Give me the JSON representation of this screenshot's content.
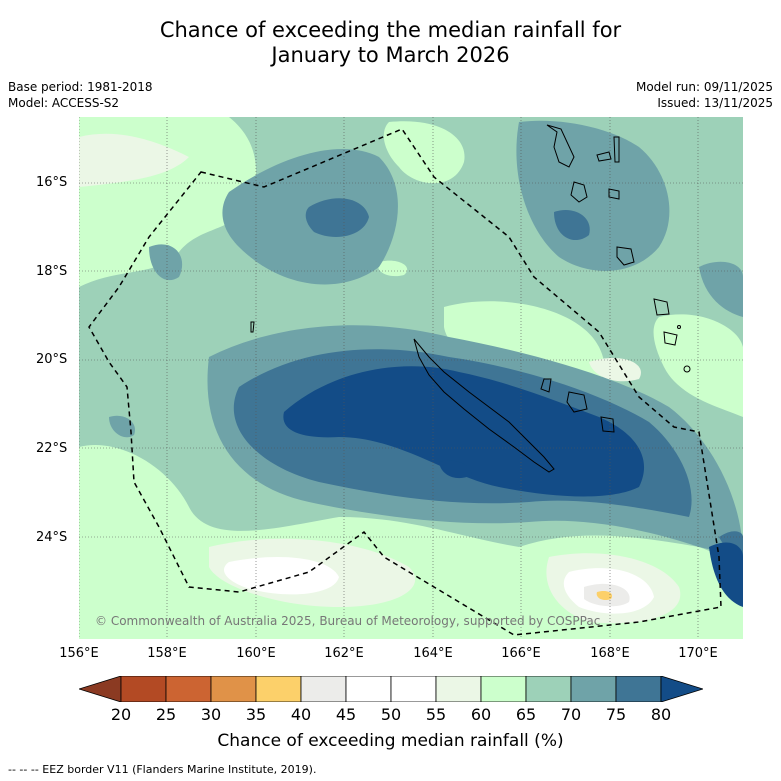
{
  "title_line1": "Chance of exceeding the median rainfall for",
  "title_line2": "January to March 2026",
  "meta": {
    "base_period": "Base period: 1981-2018",
    "model": "Model: ACCESS-S2",
    "model_run": "Model run: 09/11/2025",
    "issued": "Issued: 13/11/2025"
  },
  "axes": {
    "lat_labels": [
      "16°S",
      "18°S",
      "20°S",
      "22°S",
      "24°S"
    ],
    "lon_labels": [
      "156°E",
      "158°E",
      "160°E",
      "162°E",
      "164°E",
      "166°E",
      "168°E",
      "170°E"
    ]
  },
  "colorbar": {
    "title": "Chance of exceeding median rainfall (%)",
    "ticks": [
      "20",
      "25",
      "30",
      "35",
      "40",
      "45",
      "50",
      "55",
      "60",
      "65",
      "70",
      "75",
      "80"
    ],
    "colors": [
      "#8b3a22",
      "#b34a24",
      "#cc6432",
      "#e09248",
      "#fcd06a",
      "#ececea",
      "#ffffff",
      "#ffffff",
      "#ebf7e6",
      "#ccffcc",
      "#9dd1b8",
      "#6fa3a8",
      "#3f7595",
      "#134c87"
    ]
  },
  "copyright": "© Commonwealth of Australia 2025, Bureau of Meteorology, supported by COSPPac",
  "legend_note": "--  --  -- EEZ border V11 (Flanders Marine Institute, 2019)."
}
